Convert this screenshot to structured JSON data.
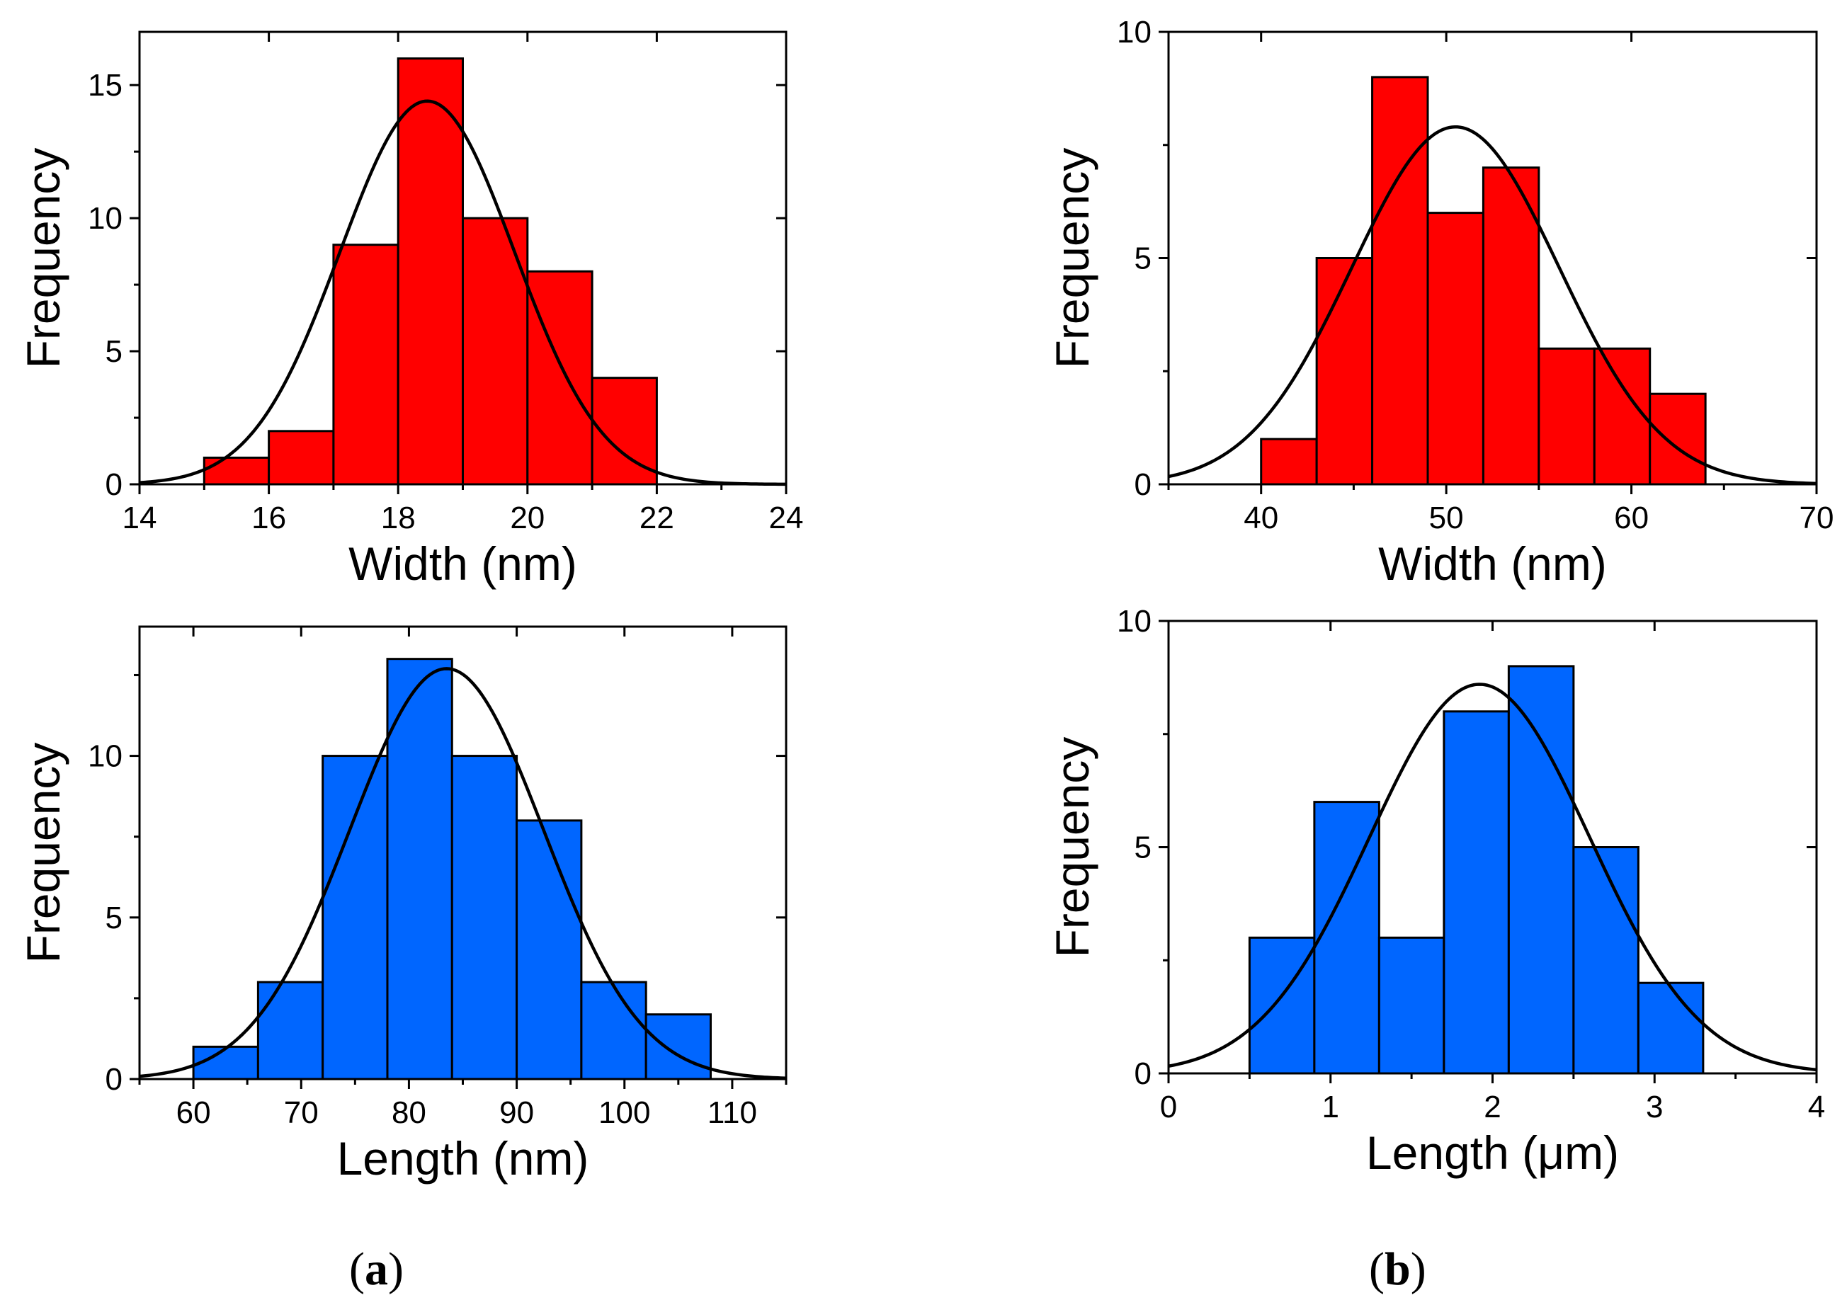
{
  "figure": {
    "panel_labels": [
      {
        "open": "(",
        "letter": "a",
        "close": ")"
      },
      {
        "open": "(",
        "letter": "b",
        "close": ")"
      }
    ]
  },
  "chart_data": [
    {
      "id": "a-top",
      "type": "bar",
      "title": "",
      "xlabel": "Width (nm)",
      "ylabel": "Frequency",
      "xlim": [
        14,
        24
      ],
      "ylim": [
        0,
        17
      ],
      "xticks": [
        14,
        16,
        18,
        20,
        22,
        24
      ],
      "xtick_labels": [
        "14",
        "16",
        "18",
        "20",
        "22",
        "24"
      ],
      "xminor": [
        15,
        17,
        19,
        21,
        23
      ],
      "yticks": [
        0,
        5,
        10,
        15
      ],
      "ytick_labels": [
        "0",
        "5",
        "10",
        "15"
      ],
      "yminor": [
        2.5,
        7.5,
        12.5
      ],
      "bin_edges": [
        15,
        16,
        17,
        18,
        19,
        20,
        21,
        22
      ],
      "values": [
        1,
        2,
        9,
        16,
        10,
        8,
        4
      ],
      "bar_color": "#ff0000",
      "fit": {
        "type": "gaussian",
        "mu": 18.45,
        "sigma": 1.35,
        "amplitude": 14.4
      }
    },
    {
      "id": "b-top",
      "type": "bar",
      "title": "",
      "xlabel": "Width (nm)",
      "ylabel": "Frequency",
      "xlim": [
        35,
        70
      ],
      "ylim": [
        0,
        10
      ],
      "xticks": [
        40,
        50,
        60,
        70
      ],
      "xtick_labels": [
        "40",
        "50",
        "60",
        "70"
      ],
      "xminor": [
        35,
        45,
        55,
        65
      ],
      "yticks": [
        0,
        5,
        10
      ],
      "ytick_labels": [
        "0",
        "5",
        "10"
      ],
      "yminor": [
        2.5,
        7.5
      ],
      "bin_edges": [
        40,
        43,
        46,
        49,
        52,
        55,
        58,
        61,
        64
      ],
      "values": [
        1,
        5,
        9,
        6,
        7,
        3,
        3,
        2
      ],
      "bar_color": "#ff0000",
      "fit": {
        "type": "gaussian",
        "mu": 50.5,
        "sigma": 5.6,
        "amplitude": 7.9
      }
    },
    {
      "id": "a-bottom",
      "type": "bar",
      "title": "",
      "xlabel": "Length (nm)",
      "ylabel": "Frequency",
      "xlim": [
        55,
        115
      ],
      "ylim": [
        0,
        14
      ],
      "xticks": [
        60,
        70,
        80,
        90,
        100,
        110
      ],
      "xtick_labels": [
        "60",
        "70",
        "80",
        "90",
        "100",
        "110"
      ],
      "xminor": [
        55,
        65,
        75,
        85,
        95,
        105,
        115
      ],
      "yticks": [
        0,
        5,
        10
      ],
      "ytick_labels": [
        "0",
        "5",
        "10"
      ],
      "yminor": [
        2.5,
        7.5,
        12.5
      ],
      "bin_edges": [
        60,
        66,
        72,
        78,
        84,
        90,
        96,
        102,
        108
      ],
      "values": [
        1,
        3,
        10,
        13,
        10,
        8,
        3,
        2
      ],
      "bar_color": "#0066ff",
      "fit": {
        "type": "gaussian",
        "mu": 83.5,
        "sigma": 9.0,
        "amplitude": 12.7
      }
    },
    {
      "id": "b-bottom",
      "type": "bar",
      "title": "",
      "xlabel": "Length (μm)",
      "ylabel": "Frequency",
      "xlim": [
        0,
        4
      ],
      "ylim": [
        0,
        10
      ],
      "xticks": [
        0,
        1,
        2,
        3,
        4
      ],
      "xtick_labels": [
        "0",
        "1",
        "2",
        "3",
        "4"
      ],
      "xminor": [
        0.5,
        1.5,
        2.5,
        3.5
      ],
      "yticks": [
        0,
        5,
        10
      ],
      "ytick_labels": [
        "0",
        "5",
        "10"
      ],
      "yminor": [
        2.5,
        7.5
      ],
      "bin_edges": [
        0.5,
        0.9,
        1.3,
        1.7,
        2.1,
        2.5,
        2.9,
        3.3
      ],
      "values": [
        3,
        6,
        3,
        8,
        9,
        5,
        2
      ],
      "bar_color": "#0066ff",
      "fit": {
        "type": "gaussian",
        "mu": 1.92,
        "sigma": 0.68,
        "amplitude": 8.6
      }
    }
  ]
}
